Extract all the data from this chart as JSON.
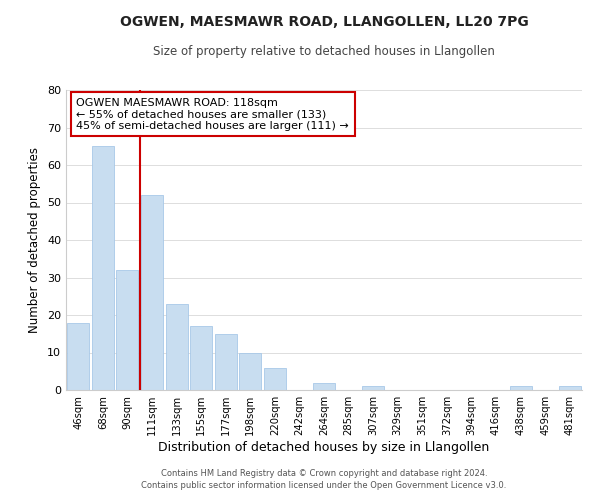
{
  "title": "OGWEN, MAESMAWR ROAD, LLANGOLLEN, LL20 7PG",
  "subtitle": "Size of property relative to detached houses in Llangollen",
  "xlabel": "Distribution of detached houses by size in Llangollen",
  "ylabel": "Number of detached properties",
  "bar_labels": [
    "46sqm",
    "68sqm",
    "90sqm",
    "111sqm",
    "133sqm",
    "155sqm",
    "177sqm",
    "198sqm",
    "220sqm",
    "242sqm",
    "264sqm",
    "285sqm",
    "307sqm",
    "329sqm",
    "351sqm",
    "372sqm",
    "394sqm",
    "416sqm",
    "438sqm",
    "459sqm",
    "481sqm"
  ],
  "bar_values": [
    18,
    65,
    32,
    52,
    23,
    17,
    15,
    10,
    6,
    0,
    2,
    0,
    1,
    0,
    0,
    0,
    0,
    0,
    1,
    0,
    1
  ],
  "bar_color": "#c8ddf0",
  "bar_edge_color": "#a8c8e8",
  "vline_color": "#cc0000",
  "annotation_text": "OGWEN MAESMAWR ROAD: 118sqm\n← 55% of detached houses are smaller (133)\n45% of semi-detached houses are larger (111) →",
  "annotation_box_color": "#ffffff",
  "annotation_box_edge_color": "#cc0000",
  "ylim": [
    0,
    80
  ],
  "yticks": [
    0,
    10,
    20,
    30,
    40,
    50,
    60,
    70,
    80
  ],
  "footer_line1": "Contains HM Land Registry data © Crown copyright and database right 2024.",
  "footer_line2": "Contains public sector information licensed under the Open Government Licence v3.0.",
  "bg_color": "#ffffff",
  "grid_color": "#dddddd"
}
